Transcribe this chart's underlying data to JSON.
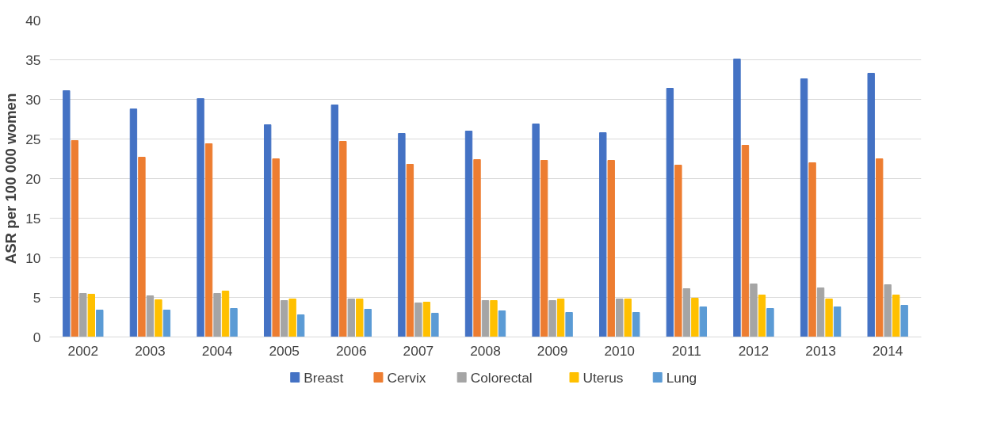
{
  "chart_data": {
    "type": "bar",
    "ylabel": "ASR per 100 000 women",
    "categories": [
      "2002",
      "2003",
      "2004",
      "2005",
      "2006",
      "2007",
      "2008",
      "2009",
      "2010",
      "2011",
      "2012",
      "2013",
      "2014"
    ],
    "series": [
      {
        "name": "Breast",
        "color": "#4472c4",
        "values": [
          31.1,
          28.8,
          30.1,
          26.8,
          29.3,
          25.7,
          26.0,
          26.9,
          25.8,
          31.4,
          35.1,
          32.6,
          33.3
        ]
      },
      {
        "name": "Cervix",
        "color": "#ed7d31",
        "values": [
          24.8,
          22.7,
          24.4,
          22.5,
          24.7,
          21.8,
          22.4,
          22.3,
          22.3,
          21.7,
          24.2,
          22.0,
          22.5
        ]
      },
      {
        "name": "Colorectal",
        "color": "#a5a5a5",
        "values": [
          5.5,
          5.2,
          5.5,
          4.6,
          4.8,
          4.3,
          4.6,
          4.6,
          4.8,
          6.1,
          6.7,
          6.2,
          6.6
        ]
      },
      {
        "name": "Uterus",
        "color": "#ffc000",
        "values": [
          5.4,
          4.7,
          5.8,
          4.8,
          4.8,
          4.4,
          4.6,
          4.8,
          4.8,
          4.9,
          5.3,
          4.8,
          5.3
        ]
      },
      {
        "name": "Lung",
        "color": "#5b9bd5",
        "values": [
          3.4,
          3.4,
          3.6,
          2.8,
          3.5,
          3.0,
          3.3,
          3.1,
          3.1,
          3.8,
          3.6,
          3.8,
          4.0
        ]
      }
    ],
    "ylim": [
      0,
      40
    ],
    "yticks": [
      0,
      5,
      10,
      15,
      20,
      25,
      30,
      35,
      40
    ],
    "grid": "y",
    "legend": "bottom"
  }
}
